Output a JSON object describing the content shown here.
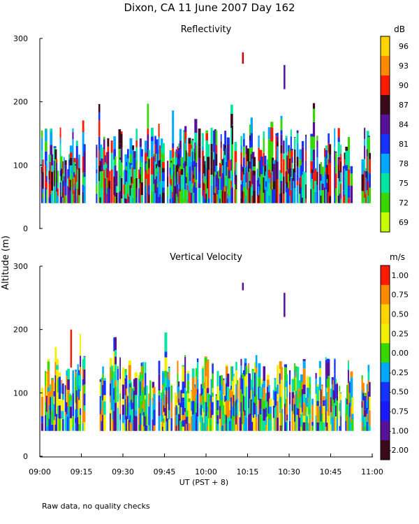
{
  "figure": {
    "title": "Dixon, CA 11 June 2007  Day 162",
    "y_axis_label": "Altitude (m)",
    "x_axis_label": "UT  (PST + 8)",
    "footnote": "Raw data, no quality checks"
  },
  "chart_data": [
    {
      "type": "heatmap",
      "title": "Reflectivity",
      "xlabel": "UT  (PST + 8)",
      "ylabel": "Altitude (m)",
      "xlim": [
        "09:00",
        "11:00"
      ],
      "x_ticks": [
        "09:00",
        "09:15",
        "09:30",
        "09:45",
        "10:00",
        "10:15",
        "10:30",
        "10:45",
        "11:00"
      ],
      "ylim": [
        0,
        300
      ],
      "y_ticks": [
        "0",
        "100",
        "200",
        "300"
      ],
      "data_altitude_range_m": [
        40,
        160
      ],
      "colorbar": {
        "unit": "dB",
        "ticks": [
          "96",
          "93",
          "90",
          "87",
          "84",
          "81",
          "78",
          "75",
          "72",
          "69"
        ],
        "colors": [
          "#ffd400",
          "#ff8a00",
          "#ff1a00",
          "#3a0a1a",
          "#56109a",
          "#1632ff",
          "#00a8ff",
          "#00e6a0",
          "#36d800",
          "#c8ff00"
        ]
      },
      "profile_colors": [
        "#56109a",
        "#1632ff",
        "#00a8ff",
        "#00e6a0",
        "#36d800",
        "#3a0a1a",
        "#ff1a00"
      ],
      "isolated_echoes": [
        {
          "time": "10:13",
          "alt_min": 260,
          "alt_max": 278,
          "color": "#c80000"
        },
        {
          "time": "10:28",
          "alt_min": 220,
          "alt_max": 258,
          "color": "#56109a"
        }
      ]
    },
    {
      "type": "heatmap",
      "title": "Vertical Velocity",
      "xlabel": "UT  (PST + 8)",
      "ylabel": "Altitude (m)",
      "xlim": [
        "09:00",
        "11:00"
      ],
      "x_ticks": [
        "09:00",
        "09:15",
        "09:30",
        "09:45",
        "10:00",
        "10:15",
        "10:30",
        "10:45",
        "11:00"
      ],
      "ylim": [
        0,
        300
      ],
      "y_ticks": [
        "0",
        "100",
        "200",
        "300"
      ],
      "data_altitude_range_m": [
        40,
        160
      ],
      "colorbar": {
        "unit": "m/s",
        "ticks": [
          "1.00",
          "0.75",
          "0.50",
          "0.25",
          "0.00",
          "-0.25",
          "-0.50",
          "-0.75",
          "-1.00",
          "-2.00"
        ],
        "colors": [
          "#ff1a00",
          "#ff8a00",
          "#ffd400",
          "#f0f000",
          "#36d800",
          "#00a8ff",
          "#1632ff",
          "#1a1aff",
          "#56109a",
          "#3a0a1a"
        ]
      },
      "profile_colors": [
        "#00a8ff",
        "#1632ff",
        "#36d800",
        "#00e6a0",
        "#f0f000",
        "#56109a",
        "#ff8a00"
      ],
      "isolated_echoes": [
        {
          "time": "09:11",
          "alt_min": 140,
          "alt_max": 200,
          "color": "#ff1a00"
        },
        {
          "time": "10:13",
          "alt_min": 262,
          "alt_max": 274,
          "color": "#56109a"
        },
        {
          "time": "10:28",
          "alt_min": 220,
          "alt_max": 258,
          "color": "#56109a"
        }
      ]
    }
  ]
}
